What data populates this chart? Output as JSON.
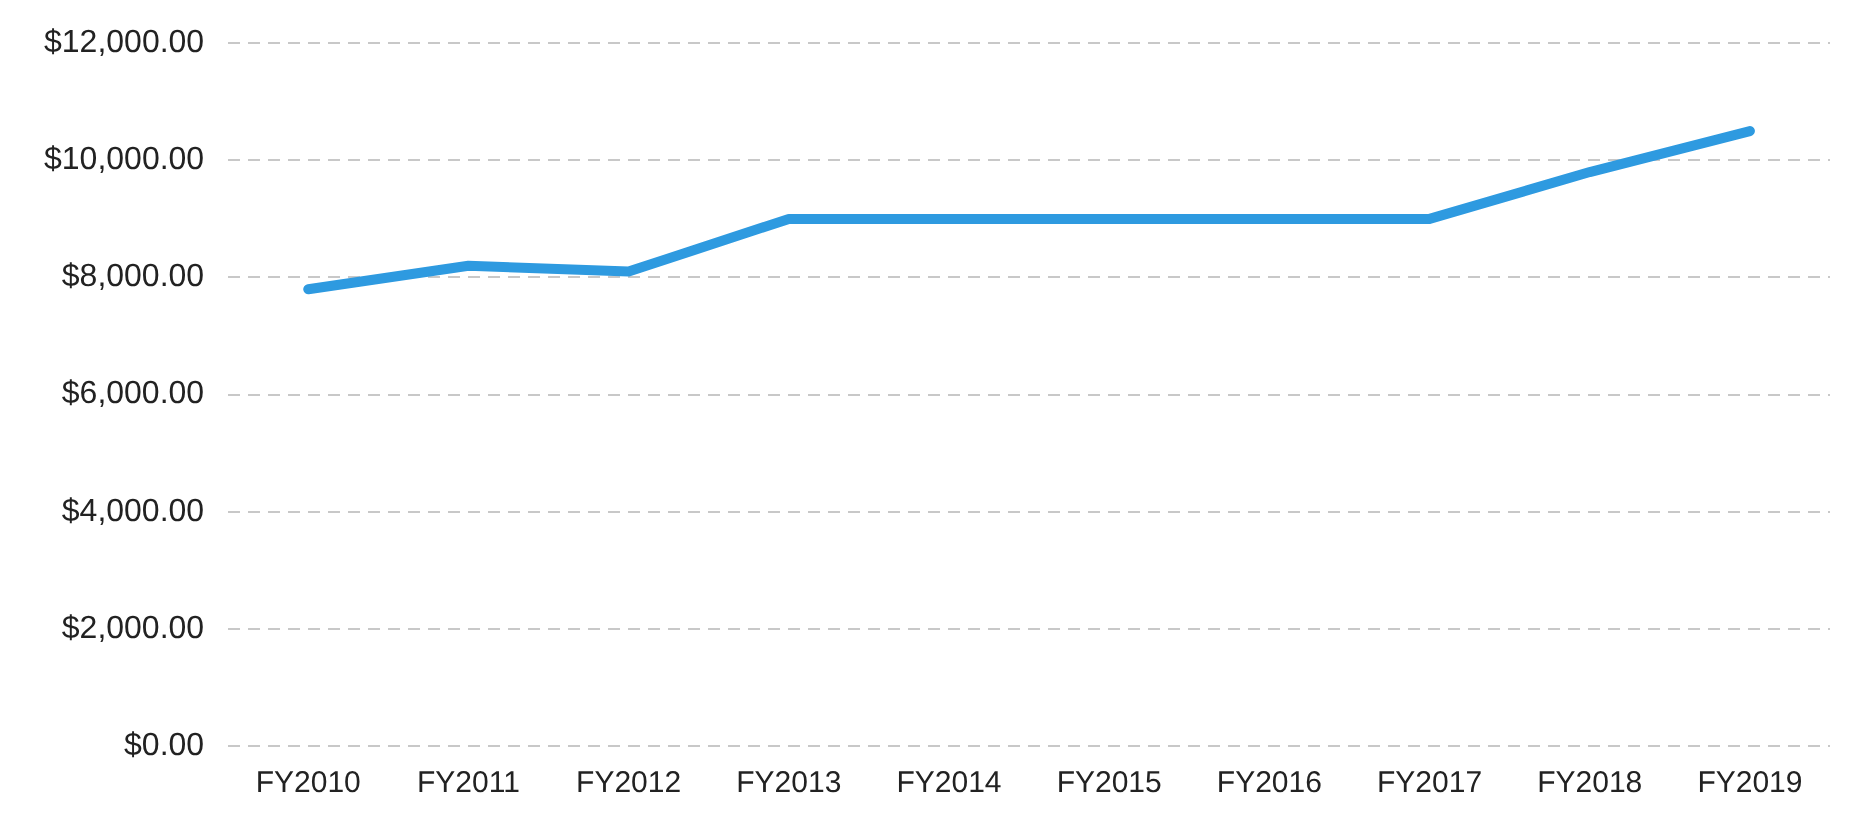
{
  "chart_data": {
    "type": "line",
    "categories": [
      "FY2010",
      "FY2011",
      "FY2012",
      "FY2013",
      "FY2014",
      "FY2015",
      "FY2016",
      "FY2017",
      "FY2018",
      "FY2019"
    ],
    "series": [
      {
        "color": "#2e9ae0",
        "values": [
          7800,
          8200,
          8100,
          9000,
          9000,
          9000,
          9000,
          9000,
          9800,
          10500
        ]
      }
    ],
    "ylim": [
      0,
      12000
    ],
    "yticks": [
      {
        "value": 0,
        "label": "$0.00"
      },
      {
        "value": 2000,
        "label": "$2,000.00"
      },
      {
        "value": 4000,
        "label": "$4,000.00"
      },
      {
        "value": 6000,
        "label": "$6,000.00"
      },
      {
        "value": 8000,
        "label": "$8,000.00"
      },
      {
        "value": 10000,
        "label": "$10,000.00"
      },
      {
        "value": 12000,
        "label": "$12,000.00"
      }
    ],
    "grid": "y",
    "legend": false,
    "marker": "none",
    "line_style": "solid"
  }
}
